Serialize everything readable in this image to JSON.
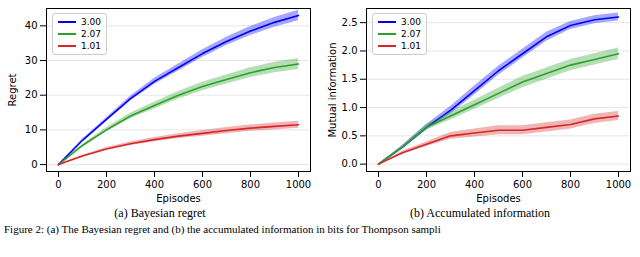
{
  "caption": "Figure 2: (a) The Bayesian regret and (b) the accumulated information in bits for Thompson sampli",
  "chart_data": [
    {
      "type": "line",
      "title": "(a) Bayesian regret",
      "x_label": "Episodes",
      "y_label": "Regret",
      "x": [
        0,
        100,
        200,
        300,
        400,
        500,
        600,
        700,
        800,
        900,
        1000
      ],
      "xlim": [
        -50,
        1050
      ],
      "xticks": [
        0,
        200,
        400,
        600,
        800,
        1000
      ],
      "ylim": [
        -2,
        45
      ],
      "yticks": [
        0,
        10,
        20,
        30,
        40
      ],
      "legend": "upper left",
      "series": [
        {
          "name": "3.00",
          "color": "#0000ff",
          "values": [
            0,
            7,
            13,
            19,
            24,
            28,
            32,
            35.5,
            38.5,
            41,
            43
          ],
          "errors": [
            0,
            0.3,
            0.5,
            0.7,
            0.9,
            1,
            1.1,
            1.2,
            1.3,
            1.4,
            1.5
          ]
        },
        {
          "name": "2.07",
          "color": "#2ca02c",
          "values": [
            0,
            5.5,
            10,
            14,
            17,
            20,
            22.5,
            24.5,
            26.5,
            28,
            29
          ],
          "errors": [
            0,
            0.3,
            0.6,
            0.8,
            1,
            1.1,
            1.2,
            1.3,
            1.4,
            1.5,
            1.6
          ]
        },
        {
          "name": "1.01",
          "color": "#d62728",
          "values": [
            0,
            2.5,
            4.5,
            6,
            7.2,
            8.2,
            9,
            9.8,
            10.5,
            11,
            11.5
          ],
          "errors": [
            0,
            0.2,
            0.4,
            0.5,
            0.6,
            0.7,
            0.8,
            0.9,
            0.9,
            1,
            1
          ]
        }
      ]
    },
    {
      "type": "line",
      "title": "(b) Accumulated information",
      "x_label": "Episodes",
      "y_label": "Mutual information",
      "x": [
        0,
        100,
        200,
        300,
        400,
        500,
        600,
        700,
        800,
        900,
        1000
      ],
      "xlim": [
        -50,
        1050
      ],
      "xticks": [
        0,
        200,
        400,
        600,
        800,
        1000
      ],
      "ylim": [
        -0.13,
        2.75
      ],
      "yticks": [
        {
          "value": 0,
          "label": "0.0"
        },
        {
          "value": 0.5,
          "label": "0.5"
        },
        {
          "value": 1,
          "label": "1.0"
        },
        {
          "value": 1.5,
          "label": "1.5"
        },
        {
          "value": 2,
          "label": "2.0"
        },
        {
          "value": 2.5,
          "label": "2.5"
        }
      ],
      "legend": "upper left",
      "series": [
        {
          "name": "3.00",
          "color": "#0000ff",
          "values": [
            0,
            0.3,
            0.65,
            0.95,
            1.3,
            1.65,
            1.95,
            2.25,
            2.45,
            2.55,
            2.6
          ],
          "errors": [
            0,
            0.03,
            0.05,
            0.07,
            0.08,
            0.08,
            0.08,
            0.08,
            0.07,
            0.07,
            0.07
          ]
        },
        {
          "name": "2.07",
          "color": "#2ca02c",
          "values": [
            0,
            0.3,
            0.65,
            0.85,
            1.05,
            1.25,
            1.45,
            1.6,
            1.75,
            1.85,
            1.95
          ],
          "errors": [
            0,
            0.03,
            0.05,
            0.07,
            0.08,
            0.09,
            0.1,
            0.1,
            0.1,
            0.1,
            0.1
          ]
        },
        {
          "name": "1.01",
          "color": "#d62728",
          "values": [
            0,
            0.2,
            0.35,
            0.5,
            0.55,
            0.6,
            0.6,
            0.65,
            0.7,
            0.8,
            0.85
          ],
          "errors": [
            0,
            0.03,
            0.04,
            0.06,
            0.07,
            0.08,
            0.08,
            0.08,
            0.08,
            0.08,
            0.08
          ]
        }
      ]
    }
  ]
}
